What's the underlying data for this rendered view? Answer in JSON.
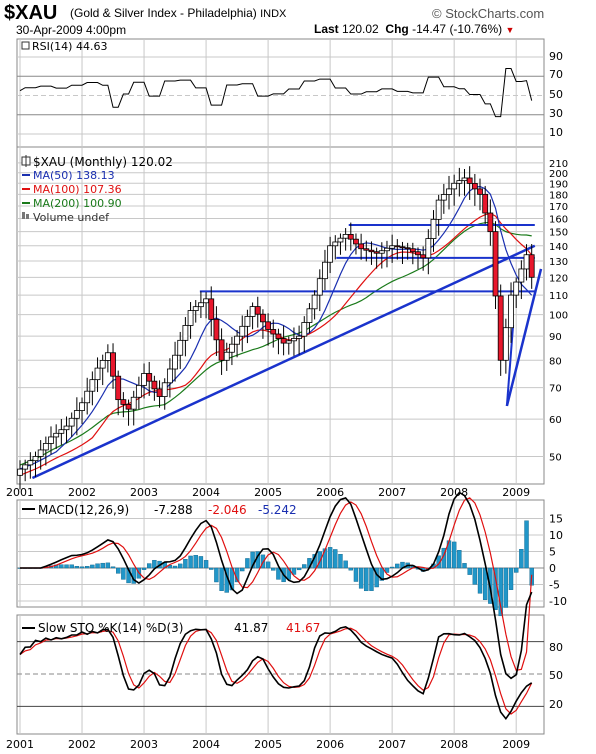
{
  "header": {
    "symbol": "$XAU",
    "name": "(Gold & Silver Index - Philadelphia)",
    "exchange": "INDX",
    "site": "© StockCharts.com",
    "date": "30-Apr-2009 4:00pm",
    "last_label": "Last",
    "last_value": "120.02",
    "chg_label": "Chg",
    "chg_value": "-14.47 (-10.76%)",
    "chg_arrow": "▼"
  },
  "colors": {
    "up": "#ffffff",
    "down": "#e8172c",
    "ma50": "#1a2fb0",
    "ma100": "#e01010",
    "ma200": "#1a7a1a",
    "trend": "#1a33cc",
    "hist": "#2196c8",
    "grid": "#c8c8c8"
  },
  "rsi_panel": {
    "label": "RSI(14) 44.63",
    "ticks": [
      "90",
      "70",
      "50",
      "30",
      "10"
    ]
  },
  "price_panel": {
    "title": "$XAU (Monthly) 120.02",
    "legend": [
      {
        "label": "MA(50) 138.13",
        "color": "#1a2fb0"
      },
      {
        "label": "MA(100) 107.36",
        "color": "#e01010"
      },
      {
        "label": "MA(200) 100.90",
        "color": "#1a7a1a"
      },
      {
        "label": "Volume undef",
        "color": "#333333"
      }
    ],
    "y_ticks": [
      "210",
      "200",
      "190",
      "180",
      "170",
      "160",
      "150",
      "140",
      "130",
      "120",
      "110",
      "100",
      "90",
      "80",
      "70",
      "60",
      "50"
    ]
  },
  "macd_panel": {
    "label": "MACD(12,26,9)",
    "v1": "-7.288",
    "v2": "-2.046",
    "v3": "-5.242",
    "ticks": [
      "15",
      "10",
      "5",
      "0",
      "-5",
      "-10"
    ]
  },
  "sto_panel": {
    "label": "Slow STO %K(14) %D(3)",
    "k": "41.87",
    "d": "41.67",
    "ticks": [
      "80",
      "50",
      "20"
    ]
  },
  "x_labels": [
    "2001",
    "2002",
    "2003",
    "2004",
    "2005",
    "2006",
    "2007",
    "2008",
    "2009"
  ],
  "chart_data": {
    "type": "candlestick",
    "title": "$XAU (Monthly) 120.02",
    "x_range": [
      "2001-01",
      "2009-04"
    ],
    "y_scale": "log",
    "y_range": [
      45,
      215
    ],
    "close_series": [
      {
        "date": "2001-01",
        "close": 47
      },
      {
        "date": "2001-04",
        "close": 50
      },
      {
        "date": "2001-07",
        "close": 55
      },
      {
        "date": "2001-10",
        "close": 58
      },
      {
        "date": "2002-01",
        "close": 65
      },
      {
        "date": "2002-04",
        "close": 77
      },
      {
        "date": "2002-06",
        "close": 83
      },
      {
        "date": "2002-08",
        "close": 66
      },
      {
        "date": "2002-10",
        "close": 63
      },
      {
        "date": "2003-01",
        "close": 75
      },
      {
        "date": "2003-04",
        "close": 67
      },
      {
        "date": "2003-07",
        "close": 82
      },
      {
        "date": "2003-10",
        "close": 102
      },
      {
        "date": "2004-01",
        "close": 108
      },
      {
        "date": "2004-04",
        "close": 80
      },
      {
        "date": "2004-07",
        "close": 90
      },
      {
        "date": "2004-10",
        "close": 104
      },
      {
        "date": "2005-01",
        "close": 93
      },
      {
        "date": "2005-04",
        "close": 87
      },
      {
        "date": "2005-07",
        "close": 90
      },
      {
        "date": "2005-10",
        "close": 110
      },
      {
        "date": "2006-01",
        "close": 140
      },
      {
        "date": "2006-04",
        "close": 148
      },
      {
        "date": "2006-07",
        "close": 138
      },
      {
        "date": "2006-10",
        "close": 135
      },
      {
        "date": "2007-01",
        "close": 140
      },
      {
        "date": "2007-04",
        "close": 138
      },
      {
        "date": "2007-07",
        "close": 132
      },
      {
        "date": "2007-10",
        "close": 175
      },
      {
        "date": "2008-01",
        "close": 190
      },
      {
        "date": "2008-03",
        "close": 195
      },
      {
        "date": "2008-06",
        "close": 180
      },
      {
        "date": "2008-08",
        "close": 150
      },
      {
        "date": "2008-10",
        "close": 80
      },
      {
        "date": "2008-12",
        "close": 110
      },
      {
        "date": "2009-02",
        "close": 125
      },
      {
        "date": "2009-03",
        "close": 134
      },
      {
        "date": "2009-04",
        "close": 120.02
      }
    ],
    "moving_averages": [
      {
        "name": "MA(50)",
        "last": 138.13
      },
      {
        "name": "MA(100)",
        "last": 107.36
      },
      {
        "name": "MA(200)",
        "last": 100.9
      }
    ],
    "horizontal_lines": [
      155,
      132,
      112
    ],
    "rsi": {
      "label": "RSI(14)",
      "last": 44.63,
      "ylim": [
        10,
        90
      ]
    },
    "macd": {
      "label": "MACD(12,26,9)",
      "macd": -7.288,
      "signal": -2.046,
      "histogram": -5.242,
      "ylim": [
        -12,
        17
      ]
    },
    "slow_sto": {
      "label": "Slow STO %K(14) %D(3)",
      "k": 41.87,
      "d": 41.67,
      "ylim": [
        0,
        100
      ]
    }
  }
}
